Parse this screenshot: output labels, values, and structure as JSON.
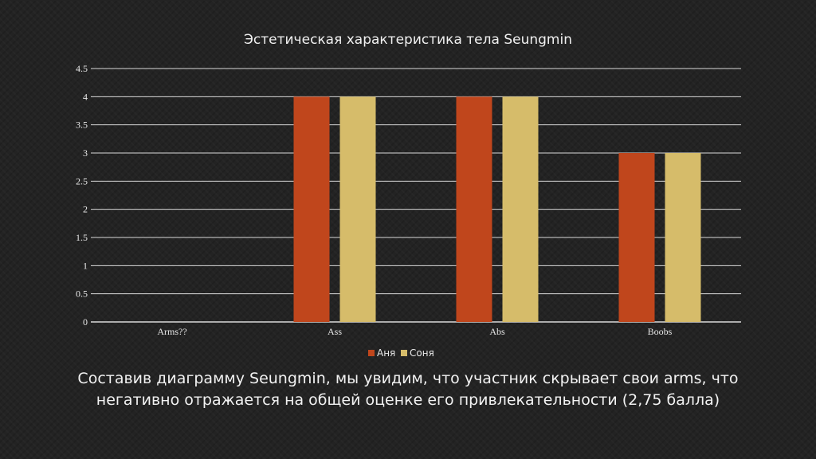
{
  "colors": {
    "background": "#232323",
    "gridline": "#d9d9d9",
    "series_anya": "#c0461c",
    "series_sonya": "#d6bc6a",
    "text": "#f2f2f2"
  },
  "caption": "Составив диаграмму Seungmin, мы увидим, что участник скрывает свои arms, что негативно отражается на общей оценке его привлекательности (2,75 балла)",
  "chart_data": {
    "type": "bar",
    "title": "Эстетическая характеристика тела Seungmin",
    "xlabel": "",
    "ylabel": "",
    "categories": [
      "Arms??",
      "Ass",
      "Abs",
      "Boobs"
    ],
    "series": [
      {
        "name": "Аня",
        "values": [
          0,
          4,
          4,
          3
        ],
        "color": "#c0461c"
      },
      {
        "name": "Соня",
        "values": [
          0,
          4,
          4,
          3
        ],
        "color": "#d6bc6a"
      }
    ],
    "ylim": [
      0,
      4.5
    ],
    "yticks": [
      "0",
      "0.5",
      "1",
      "1.5",
      "2",
      "2.5",
      "3",
      "3.5",
      "4",
      "4.5"
    ],
    "grid": true,
    "legend_position": "bottom"
  }
}
